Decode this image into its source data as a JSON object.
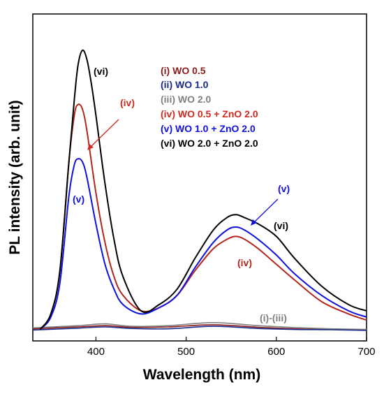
{
  "chart_data": {
    "type": "line",
    "xlabel": "Wavelength (nm)",
    "ylabel": "PL intensity (arb. unit)",
    "xlim": [
      330,
      700
    ],
    "ylim": [
      0,
      1.0
    ],
    "x_ticks": [
      400,
      500,
      600,
      700
    ],
    "y_ticks_visible": false,
    "legend_position": "top-right",
    "series": [
      {
        "name": "(i) WO 0.5",
        "color": "#8B1A1A",
        "x": [
          330,
          380,
          410,
          440,
          480,
          530,
          580,
          620,
          660,
          700
        ],
        "y": [
          0.012,
          0.018,
          0.022,
          0.017,
          0.018,
          0.025,
          0.017,
          0.012,
          0.01,
          0.008
        ]
      },
      {
        "name": "(ii) WO 1.0",
        "color": "#1a2a8a",
        "x": [
          330,
          380,
          410,
          440,
          480,
          530,
          580,
          620,
          660,
          700
        ],
        "y": [
          0.008,
          0.014,
          0.018,
          0.013,
          0.012,
          0.02,
          0.013,
          0.01,
          0.009,
          0.007
        ]
      },
      {
        "name": "(iii) WO 2.0",
        "color": "#808080",
        "x": [
          330,
          380,
          410,
          440,
          480,
          530,
          580,
          620,
          660,
          700
        ],
        "y": [
          0.015,
          0.022,
          0.028,
          0.02,
          0.022,
          0.032,
          0.022,
          0.016,
          0.012,
          0.01
        ]
      },
      {
        "name": "(iv) WO 0.5 + ZnO 2.0",
        "color": "#b3261e",
        "x": [
          338,
          350,
          360,
          370,
          376,
          380,
          385,
          390,
          400,
          410,
          420,
          430,
          450,
          470,
          490,
          510,
          530,
          545,
          555,
          565,
          580,
          600,
          620,
          650,
          680,
          700
        ],
        "y": [
          0.01,
          0.06,
          0.2,
          0.55,
          0.7,
          0.735,
          0.72,
          0.65,
          0.45,
          0.29,
          0.18,
          0.12,
          0.07,
          0.08,
          0.12,
          0.2,
          0.27,
          0.3,
          0.31,
          0.3,
          0.27,
          0.22,
          0.17,
          0.1,
          0.06,
          0.04
        ]
      },
      {
        "name": "(v) WO 1.0 + ZnO 2.0",
        "color": "#1010e0",
        "x": [
          338,
          350,
          360,
          370,
          376,
          380,
          385,
          390,
          400,
          410,
          420,
          430,
          450,
          470,
          490,
          510,
          530,
          545,
          555,
          565,
          580,
          600,
          620,
          650,
          680,
          700
        ],
        "y": [
          0.01,
          0.05,
          0.16,
          0.44,
          0.54,
          0.56,
          0.55,
          0.5,
          0.35,
          0.22,
          0.14,
          0.09,
          0.06,
          0.08,
          0.12,
          0.21,
          0.29,
          0.33,
          0.34,
          0.33,
          0.3,
          0.25,
          0.19,
          0.12,
          0.07,
          0.05
        ]
      },
      {
        "name": "(vi) WO 2.0 + ZnO 2.0",
        "color": "#000000",
        "x": [
          338,
          350,
          360,
          370,
          376,
          380,
          385,
          390,
          395,
          400,
          410,
          420,
          430,
          450,
          470,
          490,
          510,
          530,
          545,
          555,
          565,
          580,
          600,
          620,
          650,
          680,
          700
        ],
        "y": [
          0.01,
          0.06,
          0.2,
          0.55,
          0.75,
          0.86,
          0.91,
          0.88,
          0.8,
          0.7,
          0.48,
          0.3,
          0.18,
          0.07,
          0.09,
          0.14,
          0.24,
          0.33,
          0.37,
          0.38,
          0.37,
          0.35,
          0.31,
          0.24,
          0.15,
          0.09,
          0.07
        ]
      }
    ],
    "annotations": [
      {
        "text": "(vi)",
        "color": "#000000"
      },
      {
        "text": "(iv)",
        "color": "#b3261e"
      },
      {
        "text": "(v)",
        "color": "#1010e0"
      },
      {
        "text": "(v)",
        "color": "#1010e0"
      },
      {
        "text": "(vi)",
        "color": "#000000"
      },
      {
        "text": "(iv)",
        "color": "#b3261e"
      },
      {
        "text": "(i)-(iii)",
        "color": "#808080"
      }
    ]
  }
}
